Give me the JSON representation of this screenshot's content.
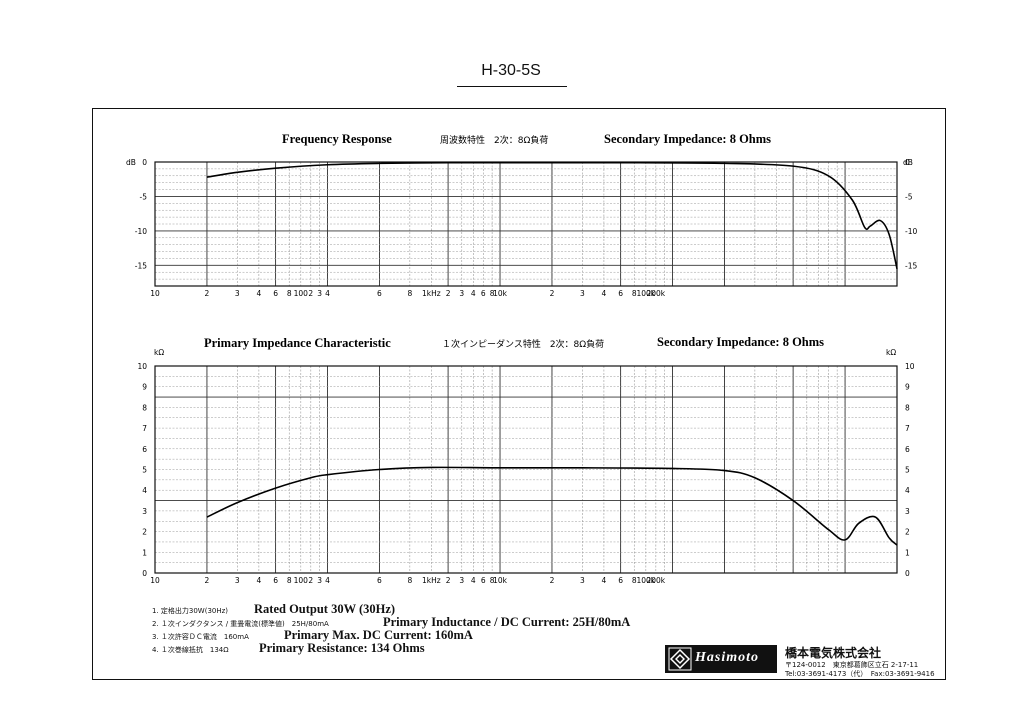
{
  "page_title": "H-30-5S",
  "charts": {
    "freq": {
      "title_en": "Frequency Response",
      "title_jp": "周波数特性　2次：8Ω負荷",
      "subtitle_en": "Secondary Impedance: 8 Ohms",
      "unit_left": "dB",
      "unit_right": "dB"
    },
    "imp": {
      "title_en": "Primary Impedance Characteristic",
      "title_jp": "１次インピーダンス特性　2次：8Ω負荷",
      "subtitle_en": "Secondary Impedance: 8 Ohms",
      "unit_left": "kΩ",
      "unit_right": "kΩ"
    }
  },
  "notes": [
    {
      "jp": "1. 定格出力30W(30Hz)",
      "en": "Rated Output 30W (30Hz)"
    },
    {
      "jp": "2. １次インダクタンス / 重畳電流(標準値)　25H/80mA",
      "en": "Primary Inductance / DC Current: 25H/80mA"
    },
    {
      "jp": "3. １次許容ＤＣ電流　160mA",
      "en": "Primary Max. DC Current: 160mA"
    },
    {
      "jp": "4. １次巻線抵抗　134Ω",
      "en": "Primary Resistance: 134 Ohms"
    }
  ],
  "footer": {
    "logo_text": "Hasimoto",
    "company": "橋本電気株式会社",
    "address": "〒124-0012　東京都葛飾区立石 2-17-11",
    "phone": "Tel:03-3691-4173（代）　Fax:03-3691-9416"
  },
  "chart_data": [
    {
      "type": "line",
      "title": "Frequency Response",
      "xlabel": "",
      "ylabel": "dB",
      "x_scale": "log",
      "xlim": [
        10,
        200000
      ],
      "ylim": [
        -18,
        0
      ],
      "x_tick_labels": [
        "10",
        "2",
        "3",
        "4",
        "6",
        "8",
        "100",
        "2",
        "3",
        "4",
        "6",
        "8",
        "1kHz",
        "2",
        "3",
        "4",
        "6",
        "8",
        "10k",
        "2",
        "3",
        "4",
        "6",
        "8",
        "100k",
        "200k"
      ],
      "y_tick_labels": [
        "0",
        "-5",
        "-10",
        "-15"
      ],
      "grid": true,
      "series": [
        {
          "x": [
            20,
            30,
            50,
            100,
            200,
            500,
            1000,
            5000,
            20000,
            50000,
            80000,
            110000,
            130000,
            140000,
            160000,
            180000,
            200000
          ],
          "y": [
            -2.2,
            -1.5,
            -0.9,
            -0.4,
            -0.2,
            -0.1,
            -0.1,
            -0.1,
            -0.2,
            -0.6,
            -2.0,
            -5.5,
            -9.5,
            -9.3,
            -8.5,
            -10.5,
            -15.5
          ]
        }
      ]
    },
    {
      "type": "line",
      "title": "Primary Impedance Characteristic",
      "xlabel": "",
      "ylabel": "kΩ",
      "x_scale": "log",
      "xlim": [
        10,
        200000
      ],
      "ylim": [
        0,
        10
      ],
      "x_tick_labels": [
        "10",
        "2",
        "3",
        "4",
        "6",
        "8",
        "100",
        "2",
        "3",
        "4",
        "6",
        "8",
        "1kHz",
        "2",
        "3",
        "4",
        "6",
        "8",
        "10k",
        "2",
        "3",
        "4",
        "6",
        "8",
        "100k",
        "200k"
      ],
      "y_tick_labels": [
        "0",
        "1",
        "2",
        "3",
        "4",
        "5",
        "6",
        "7",
        "8",
        "9",
        "10"
      ],
      "grid": true,
      "series": [
        {
          "x": [
            20,
            30,
            50,
            80,
            100,
            200,
            400,
            1000,
            3000,
            10000,
            20000,
            30000,
            50000,
            80000,
            100000,
            120000,
            150000,
            180000,
            200000
          ],
          "y": [
            2.7,
            3.4,
            4.1,
            4.6,
            4.75,
            5.0,
            5.1,
            5.08,
            5.08,
            5.05,
            4.95,
            4.6,
            3.5,
            2.1,
            1.6,
            2.4,
            2.7,
            1.7,
            1.35
          ]
        }
      ]
    }
  ]
}
